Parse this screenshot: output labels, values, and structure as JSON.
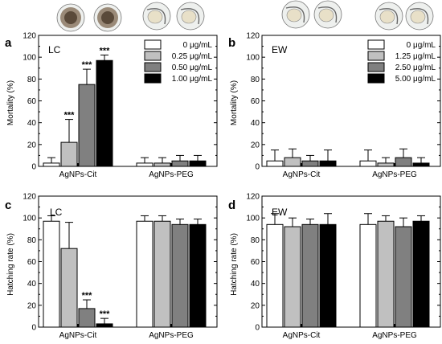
{
  "colors": {
    "dose": [
      "#ffffff",
      "#c0c0c0",
      "#808080",
      "#000000"
    ],
    "embryo_shell": "#eef0ee",
    "embryo_yolk": "#e8e0c8",
    "embryo_dark": "#5a4a3a"
  },
  "chart_data": [
    {
      "panel": "a",
      "title": "LC",
      "type": "bar",
      "ylabel": "Mortality (%)",
      "ylim": [
        0,
        120
      ],
      "yticks": [
        0,
        20,
        40,
        60,
        80,
        100,
        120
      ],
      "categories": [
        "AgNPs-Cit",
        "AgNPs-PEG"
      ],
      "legend": [
        "0 μg/mL",
        "0.25 μg/mL",
        "0.50 μg/mL",
        "1.00 μg/mL"
      ],
      "legend_position": "top-right",
      "series": [
        {
          "name": "0 μg/mL",
          "values": [
            3,
            3
          ],
          "errors": [
            5,
            5
          ]
        },
        {
          "name": "0.25 μg/mL",
          "values": [
            22,
            3
          ],
          "errors": [
            21,
            5
          ]
        },
        {
          "name": "0.50 μg/mL",
          "values": [
            75,
            5
          ],
          "errors": [
            14,
            5
          ]
        },
        {
          "name": "1.00 μg/mL",
          "values": [
            97,
            5
          ],
          "errors": [
            5,
            5
          ]
        }
      ],
      "annotations": [
        {
          "series": 1,
          "category": 0,
          "text": "***"
        },
        {
          "series": 2,
          "category": 0,
          "text": "***"
        },
        {
          "series": 3,
          "category": 0,
          "text": "***"
        }
      ]
    },
    {
      "panel": "b",
      "title": "EW",
      "type": "bar",
      "ylabel": "Mortality (%)",
      "ylim": [
        0,
        120
      ],
      "yticks": [
        0,
        20,
        40,
        60,
        80,
        100,
        120
      ],
      "categories": [
        "AgNPs-Cit",
        "AgNPs-PEG"
      ],
      "legend": [
        "0 μg/mL",
        "1.25 μg/mL",
        "2.50 μg/mL",
        "5.00 μg/mL"
      ],
      "legend_position": "top-right",
      "series": [
        {
          "name": "0 μg/mL",
          "values": [
            5,
            5
          ],
          "errors": [
            10,
            10
          ]
        },
        {
          "name": "1.25 μg/mL",
          "values": [
            8,
            3
          ],
          "errors": [
            8,
            5
          ]
        },
        {
          "name": "2.50 μg/mL",
          "values": [
            5,
            8
          ],
          "errors": [
            5,
            8
          ]
        },
        {
          "name": "5.00 μg/mL",
          "values": [
            5,
            3
          ],
          "errors": [
            10,
            5
          ]
        }
      ],
      "annotations": []
    },
    {
      "panel": "c",
      "title": "LC",
      "type": "bar",
      "ylabel": "Hatching rate (%)",
      "ylim": [
        0,
        120
      ],
      "yticks": [
        0,
        20,
        40,
        60,
        80,
        100,
        120
      ],
      "categories": [
        "AgNPs-Cit",
        "AgNPs-PEG"
      ],
      "legend": [],
      "series": [
        {
          "name": "0 μg/mL",
          "values": [
            97,
            97
          ],
          "errors": [
            5,
            5
          ]
        },
        {
          "name": "0.25 μg/mL",
          "values": [
            72,
            97
          ],
          "errors": [
            24,
            5
          ]
        },
        {
          "name": "0.50 μg/mL",
          "values": [
            17,
            94
          ],
          "errors": [
            8,
            5
          ]
        },
        {
          "name": "1.00 μg/mL",
          "values": [
            3,
            94
          ],
          "errors": [
            5,
            5
          ]
        }
      ],
      "annotations": [
        {
          "series": 2,
          "category": 0,
          "text": "***"
        },
        {
          "series": 3,
          "category": 0,
          "text": "***"
        }
      ]
    },
    {
      "panel": "d",
      "title": "EW",
      "type": "bar",
      "ylabel": "Hatching rate (%)",
      "ylim": [
        0,
        120
      ],
      "yticks": [
        0,
        20,
        40,
        60,
        80,
        100,
        120
      ],
      "categories": [
        "AgNPs-Cit",
        "AgNPs-PEG"
      ],
      "legend": [],
      "series": [
        {
          "name": "0 μg/mL",
          "values": [
            94,
            94
          ],
          "errors": [
            10,
            10
          ]
        },
        {
          "name": "1.25 μg/mL",
          "values": [
            92,
            97
          ],
          "errors": [
            8,
            5
          ]
        },
        {
          "name": "2.50 μg/mL",
          "values": [
            94,
            92
          ],
          "errors": [
            5,
            8
          ]
        },
        {
          "name": "5.00 μg/mL",
          "values": [
            94,
            97
          ],
          "errors": [
            10,
            5
          ]
        }
      ],
      "annotations": []
    }
  ]
}
